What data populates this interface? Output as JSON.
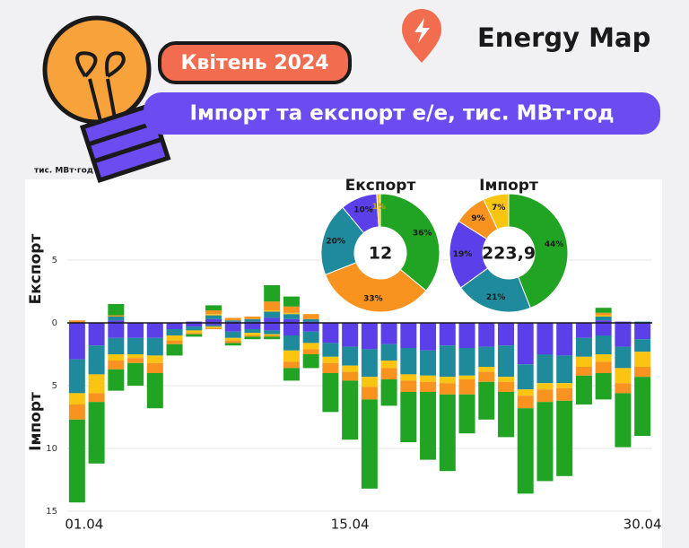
{
  "header": {
    "subtitle": "Квітень 2024",
    "title": "Імпорт та експорт е/е, тис. МВт·год",
    "brand": "Energy Map"
  },
  "chart_data": [
    {
      "type": "bar",
      "unit_label": "тис. МВт·год",
      "export_label": "Експорт",
      "import_label": "Імпорт",
      "categories": [
        "01.04",
        null,
        null,
        null,
        null,
        null,
        null,
        null,
        null,
        null,
        null,
        null,
        null,
        null,
        "15.04",
        null,
        null,
        null,
        null,
        null,
        null,
        null,
        null,
        null,
        null,
        null,
        null,
        null,
        null,
        "30.04"
      ],
      "ylim": [
        -15,
        5
      ],
      "yticks": [
        5,
        0,
        {
          "value": -5,
          "label": "5"
        },
        {
          "value": -10,
          "label": "10"
        },
        {
          "value": -15,
          "label": "15"
        }
      ],
      "grid": true,
      "series": [
        {
          "color": "#5b3fe8",
          "values": [
            0,
            0,
            0.2,
            0,
            0,
            0,
            0.1,
            0.3,
            0.1,
            0.1,
            0.4,
            0.3,
            0.1,
            0,
            0,
            0,
            0,
            0,
            0,
            0,
            0,
            0,
            0,
            0,
            0,
            0,
            0,
            0.2,
            0.1,
            0
          ]
        },
        {
          "color": "#1e8a9c",
          "values": [
            0,
            0,
            0.3,
            0,
            0,
            0,
            0,
            0.3,
            0.1,
            0.2,
            0.5,
            0.4,
            0.2,
            0,
            0,
            0,
            0,
            0,
            0,
            0,
            0,
            0,
            0,
            0,
            0,
            0,
            0,
            0.3,
            0,
            0.1
          ]
        },
        {
          "color": "#f9c511",
          "values": [
            0,
            0,
            0,
            0,
            0,
            0,
            0,
            0.1,
            0,
            0,
            0.1,
            0.1,
            0,
            0,
            0,
            0,
            0,
            0,
            0,
            0,
            0,
            0,
            0,
            0,
            0,
            0,
            0,
            0.1,
            0,
            0
          ]
        },
        {
          "color": "#f7931e",
          "values": [
            0.2,
            0,
            0.1,
            0,
            0,
            0,
            0,
            0.3,
            0.2,
            0.2,
            0.7,
            0.5,
            0.4,
            0,
            0,
            0,
            0,
            0,
            0,
            0,
            0,
            0,
            0,
            0,
            0,
            0,
            0,
            0.2,
            0,
            0
          ]
        },
        {
          "color": "#21a323",
          "values": [
            0,
            0,
            0.9,
            0,
            0,
            0,
            0,
            0.4,
            0,
            0,
            1.3,
            0.8,
            0,
            0,
            0,
            0,
            0,
            0,
            0,
            0,
            0,
            0,
            0,
            0,
            0,
            0,
            0,
            0.4,
            0,
            0
          ]
        },
        {
          "color": "#5b3fe8",
          "values": [
            -2.9,
            -1.8,
            -1.2,
            -1.2,
            -1.2,
            -0.5,
            -0.3,
            -0.2,
            -0.7,
            -0.5,
            -0.6,
            -1.0,
            -0.7,
            -1.6,
            -1.9,
            -2.1,
            -1.7,
            -2.0,
            -2.2,
            -1.8,
            -2.0,
            -1.9,
            -1.8,
            -3.3,
            -2.5,
            -2.6,
            -1.2,
            -1.0,
            -1.9,
            -1.3
          ]
        },
        {
          "color": "#1e8a9c",
          "values": [
            -2.7,
            -2.3,
            -1.3,
            -1.3,
            -1.4,
            -0.5,
            -0.3,
            -0.1,
            -0.5,
            -0.3,
            -0.3,
            -1.2,
            -0.9,
            -1.1,
            -1.5,
            -2.2,
            -1.3,
            -2.1,
            -2.0,
            -2.5,
            -2.2,
            -1.6,
            -2.5,
            -2.0,
            -2.3,
            -2.2,
            -1.5,
            -1.5,
            -1.7,
            -1.0
          ]
        },
        {
          "color": "#f9c511",
          "values": [
            -0.9,
            -1.5,
            -0.5,
            -0.3,
            -0.6,
            -0.4,
            -0.2,
            -0.1,
            -0.2,
            -0.2,
            -0.1,
            -0.9,
            -0.5,
            -0.5,
            -0.5,
            -0.8,
            -0.6,
            -0.5,
            -0.5,
            -0.5,
            -0.3,
            -0.4,
            -0.4,
            -0.5,
            -0.5,
            -0.4,
            -0.8,
            -0.6,
            -1.2,
            -1.2
          ]
        },
        {
          "color": "#f7931e",
          "values": [
            -1.2,
            -0.7,
            -0.7,
            -0.4,
            -0.8,
            -0.3,
            -0.1,
            -0.1,
            -0.2,
            -0.1,
            -0.1,
            -0.5,
            -0.4,
            -0.8,
            -0.7,
            -1.0,
            -0.9,
            -0.9,
            -0.8,
            -0.9,
            -1.2,
            -0.8,
            -0.8,
            -1.0,
            -1.0,
            -1.0,
            -0.7,
            -0.9,
            -0.8,
            -0.8
          ]
        },
        {
          "color": "#21a323",
          "values": [
            -6.6,
            -4.9,
            -1.7,
            -1.8,
            -2.8,
            -0.9,
            -0.2,
            0,
            -0.2,
            -0.2,
            -0.2,
            -1.0,
            -1.1,
            -3.1,
            -4.7,
            -7.1,
            -2.1,
            -4.0,
            -5.4,
            -6.1,
            -3.1,
            -3.0,
            -3.6,
            -6.8,
            -6.3,
            -6.0,
            -2.3,
            -2.1,
            -4.3,
            -4.7
          ]
        }
      ]
    },
    {
      "type": "pie",
      "title": "Експорт",
      "total": 12,
      "values": [
        36,
        33,
        20,
        10,
        1
      ],
      "value_labels": [
        "36%",
        "33%",
        "20%",
        "10%",
        "1%"
      ],
      "colors": [
        "#21a323",
        "#f7931e",
        "#1e8a9c",
        "#5b3fe8",
        "#f9c511"
      ]
    },
    {
      "type": "pie",
      "title": "Імпорт",
      "total": {
        "value": 223.9,
        "label": "223,9"
      },
      "values": [
        44,
        21,
        19,
        9,
        7
      ],
      "value_labels": [
        "44%",
        "21%",
        "19%",
        "9%",
        "7%"
      ],
      "colors": [
        "#21a323",
        "#1e8a9c",
        "#5b3fe8",
        "#f7931e",
        "#f9c511"
      ]
    }
  ]
}
